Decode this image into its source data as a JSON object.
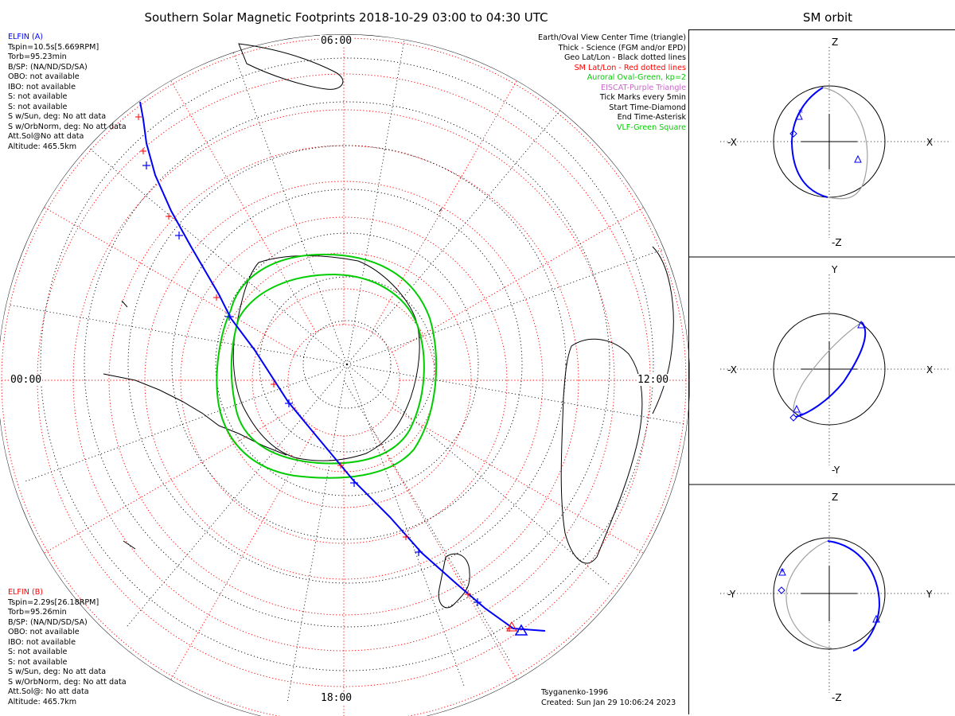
{
  "title": "Southern Solar Magnetic Footprints 2018-10-29 03:00 to 04:30 UTC",
  "side_title": "SM orbit",
  "colors": {
    "elfin_a": "#0000ff",
    "elfin_b": "#ff0000",
    "geo_grid": "#000000",
    "sm_grid": "#ff0000",
    "auroral_oval": "#00cc00",
    "eiscat": "#cc66cc",
    "vlf": "#00cc00",
    "orbit_grey": "#a0a0a0"
  },
  "elfin_a": {
    "name": "ELFIN (A)",
    "lines": [
      "Tspin=10.5s[5.669RPM]",
      "Torb=95.23min",
      "B/SP: (NA/ND/SD/SA)",
      "OBO: not available",
      "IBO: not available",
      "S: not available",
      "S: not available",
      "S w/Sun, deg: No att data",
      "S w/OrbNorm, deg: No att data",
      "Att.Sol@No att data",
      "Altitude: 465.5km"
    ]
  },
  "elfin_b": {
    "name": "ELFIN (B)",
    "lines": [
      "Tspin=2.29s[26.18RPM]",
      "Torb=95.26min",
      "B/SP: (NA/ND/SD/SA)",
      "OBO: not available",
      "IBO: not available",
      "S: not available",
      "S: not available",
      "S w/Sun, deg: No att data",
      "S w/OrbNorm, deg: No att data",
      "Att.Sol@: No att data",
      "Altitude: 465.7km"
    ]
  },
  "legend": [
    {
      "text": "Earth/Oval View Center Time (triangle)",
      "color": "#000000"
    },
    {
      "text": "Thick - Science (FGM and/or EPD)",
      "color": "#000000"
    },
    {
      "text": "Geo Lat/Lon - Black dotted lines",
      "color": "#000000"
    },
    {
      "text": "SM Lat/Lon - Red dotted lines",
      "color": "#ff0000"
    },
    {
      "text": "Auroral Oval-Green, kp=2",
      "color": "#00cc00"
    },
    {
      "text": "EISCAT-Purple Triangle",
      "color": "#cc66cc"
    },
    {
      "text": "Tick Marks every 5min",
      "color": "#000000"
    },
    {
      "text": "Start Time-Diamond",
      "color": "#000000"
    },
    {
      "text": "End Time-Asterisk",
      "color": "#000000"
    },
    {
      "text": "VLF-Green Square",
      "color": "#00cc00"
    }
  ],
  "clock_labels": {
    "top": "06:00",
    "left": "00:00",
    "right": "12:00",
    "bottom": "18:00"
  },
  "footer": [
    "Tsyganenko-1996",
    "Created: Sun Jan 29 10:06:24 2023"
  ],
  "panels": [
    {
      "x_left": "-X",
      "x_right": "X",
      "y_top": "Z",
      "y_bottom": "-Z"
    },
    {
      "x_left": "-X",
      "x_right": "X",
      "y_top": "Y",
      "y_bottom": "-Y"
    },
    {
      "x_left": "-Y",
      "x_right": "Y",
      "y_top": "Z",
      "y_bottom": "-Z"
    }
  ],
  "chart_data": {
    "type": "polar-map",
    "projection": "southern hemisphere polar, SM coordinates",
    "time_range": [
      "2018-10-29 03:00",
      "2018-10-29 04:30"
    ],
    "tick_interval_min": 5,
    "model": "Tsyganenko-1996",
    "kp": 2,
    "series": [
      {
        "name": "ELFIN (A)",
        "marker": "plus, 5 min ticks",
        "color": "#0000ff"
      },
      {
        "name": "ELFIN (B)",
        "marker": "plus, 5 min ticks",
        "color": "#ff0000"
      }
    ]
  }
}
